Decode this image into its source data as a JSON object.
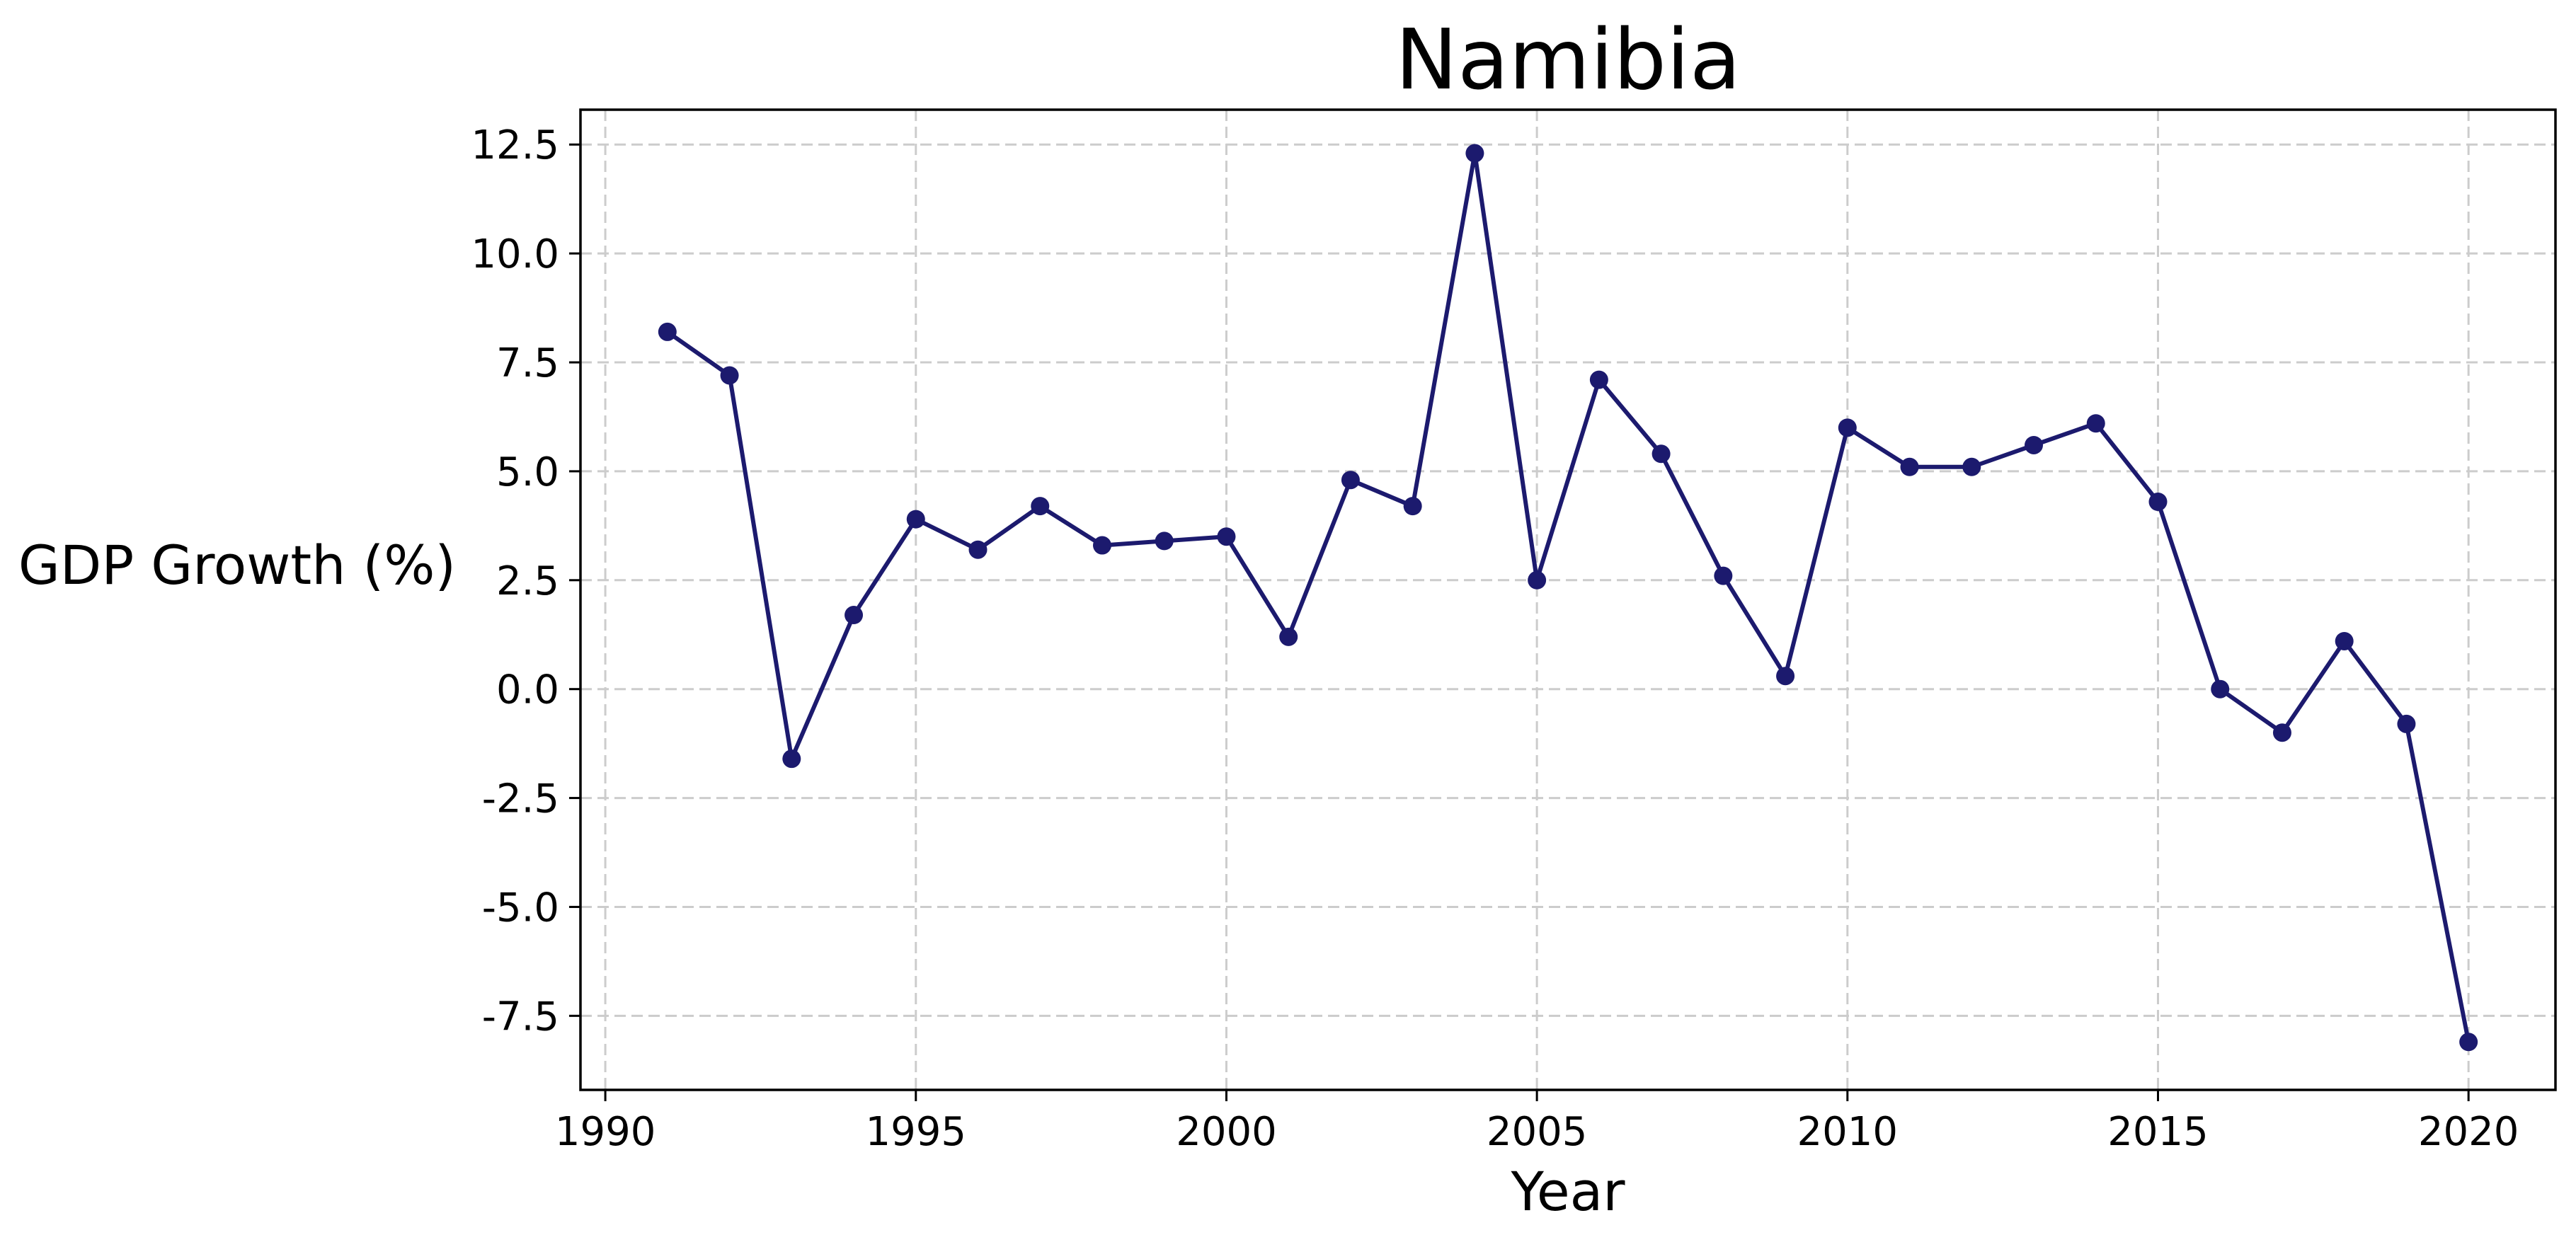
{
  "chart_data": {
    "type": "line",
    "title": "Namibia",
    "xlabel": "Year",
    "ylabel": "GDP Growth (%)",
    "xlim": [
      1989.6,
      2021.4
    ],
    "ylim": [
      -9.2,
      13.3
    ],
    "x_ticks": [
      1990,
      1995,
      2000,
      2005,
      2010,
      2015,
      2020
    ],
    "y_ticks": [
      -7.5,
      -5.0,
      -2.5,
      0.0,
      2.5,
      5.0,
      7.5,
      10.0,
      12.5
    ],
    "y_tick_labels": [
      "-7.5",
      "-5.0",
      "-2.5",
      "0.0",
      "2.5",
      "5.0",
      "7.5",
      "10.0",
      "12.5"
    ],
    "grid": true,
    "series": [
      {
        "color": "#1c1a6e",
        "marker": "circle",
        "x": [
          1991,
          1992,
          1993,
          1994,
          1995,
          1996,
          1997,
          1998,
          1999,
          2000,
          2001,
          2002,
          2003,
          2004,
          2005,
          2006,
          2007,
          2008,
          2009,
          2010,
          2011,
          2012,
          2013,
          2014,
          2015,
          2016,
          2017,
          2018,
          2019,
          2020
        ],
        "y": [
          8.2,
          7.2,
          -1.6,
          1.7,
          3.9,
          3.2,
          4.2,
          3.3,
          3.4,
          3.5,
          1.2,
          4.8,
          4.2,
          12.3,
          2.5,
          7.1,
          5.4,
          2.6,
          0.3,
          6.0,
          5.1,
          5.1,
          5.6,
          6.1,
          4.3,
          0.0,
          -1.0,
          1.1,
          -0.8,
          -8.1
        ]
      }
    ]
  }
}
